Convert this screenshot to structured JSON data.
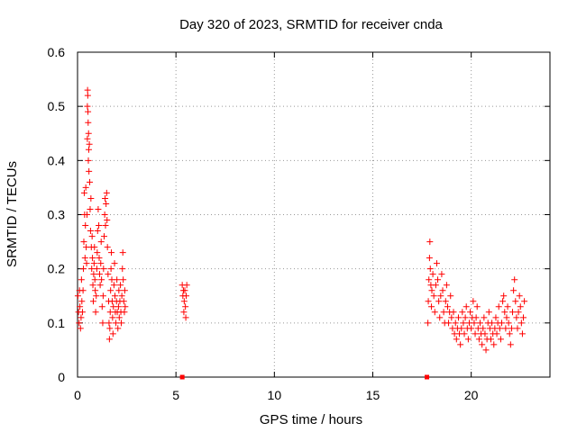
{
  "chart_data": {
    "type": "scatter",
    "title": "Day 320 of 2023, SRMTID for receiver cnda",
    "xlabel": "GPS time / hours",
    "ylabel": "SRMTID / TECUs",
    "xlim": [
      0,
      24
    ],
    "ylim": [
      0,
      0.6
    ],
    "xticks": [
      0,
      5,
      10,
      15,
      20
    ],
    "yticks": [
      0,
      0.1,
      0.2,
      0.3,
      0.4,
      0.5,
      0.6
    ],
    "grid": true,
    "marker": "+",
    "color": "#ff0000",
    "series": [
      {
        "name": "SRMTID",
        "points": [
          [
            0.02,
            0.15
          ],
          [
            0.05,
            0.12
          ],
          [
            0.08,
            0.1
          ],
          [
            0.1,
            0.16
          ],
          [
            0.12,
            0.13
          ],
          [
            0.15,
            0.09
          ],
          [
            0.18,
            0.11
          ],
          [
            0.2,
            0.18
          ],
          [
            0.22,
            0.14
          ],
          [
            0.25,
            0.12
          ],
          [
            0.28,
            0.16
          ],
          [
            0.3,
            0.2
          ],
          [
            0.32,
            0.25
          ],
          [
            0.34,
            0.34
          ],
          [
            0.36,
            0.3
          ],
          [
            0.38,
            0.22
          ],
          [
            0.4,
            0.28
          ],
          [
            0.42,
            0.35
          ],
          [
            0.44,
            0.24
          ],
          [
            0.46,
            0.21
          ],
          [
            0.48,
            0.3
          ],
          [
            0.5,
            0.44
          ],
          [
            0.5,
            0.5
          ],
          [
            0.51,
            0.53
          ],
          [
            0.52,
            0.52
          ],
          [
            0.53,
            0.49
          ],
          [
            0.54,
            0.47
          ],
          [
            0.55,
            0.4
          ],
          [
            0.56,
            0.45
          ],
          [
            0.57,
            0.42
          ],
          [
            0.58,
            0.38
          ],
          [
            0.6,
            0.43
          ],
          [
            0.62,
            0.36
          ],
          [
            0.64,
            0.31
          ],
          [
            0.66,
            0.27
          ],
          [
            0.68,
            0.33
          ],
          [
            0.7,
            0.24
          ],
          [
            0.72,
            0.2
          ],
          [
            0.74,
            0.26
          ],
          [
            0.76,
            0.22
          ],
          [
            0.78,
            0.17
          ],
          [
            0.8,
            0.14
          ],
          [
            0.82,
            0.19
          ],
          [
            0.84,
            0.21
          ],
          [
            0.86,
            0.24
          ],
          [
            0.88,
            0.18
          ],
          [
            0.9,
            0.16
          ],
          [
            0.92,
            0.12
          ],
          [
            0.95,
            0.15
          ],
          [
            0.98,
            0.2
          ],
          [
            1.0,
            0.23
          ],
          [
            1.02,
            0.27
          ],
          [
            1.05,
            0.31
          ],
          [
            1.08,
            0.28
          ],
          [
            1.1,
            0.22
          ],
          [
            1.12,
            0.19
          ],
          [
            1.15,
            0.17
          ],
          [
            1.18,
            0.21
          ],
          [
            1.2,
            0.25
          ],
          [
            1.22,
            0.18
          ],
          [
            1.25,
            0.13
          ],
          [
            1.28,
            0.1
          ],
          [
            1.3,
            0.15
          ],
          [
            1.32,
            0.2
          ],
          [
            1.35,
            0.26
          ],
          [
            1.38,
            0.3
          ],
          [
            1.4,
            0.33
          ],
          [
            1.42,
            0.28
          ],
          [
            1.45,
            0.32
          ],
          [
            1.48,
            0.34
          ],
          [
            1.5,
            0.29
          ],
          [
            1.52,
            0.24
          ],
          [
            1.55,
            0.19
          ],
          [
            1.58,
            0.14
          ],
          [
            1.6,
            0.1
          ],
          [
            1.62,
            0.07
          ],
          [
            1.64,
            0.09
          ],
          [
            1.66,
            0.12
          ],
          [
            1.68,
            0.16
          ],
          [
            1.7,
            0.2
          ],
          [
            1.72,
            0.23
          ],
          [
            1.74,
            0.18
          ],
          [
            1.76,
            0.14
          ],
          [
            1.78,
            0.11
          ],
          [
            1.8,
            0.08
          ],
          [
            1.82,
            0.13
          ],
          [
            1.85,
            0.17
          ],
          [
            1.88,
            0.21
          ],
          [
            1.9,
            0.15
          ],
          [
            1.92,
            0.12
          ],
          [
            1.95,
            0.1
          ],
          [
            1.98,
            0.14
          ],
          [
            2.0,
            0.18
          ],
          [
            2.02,
            0.12
          ],
          [
            2.05,
            0.09
          ],
          [
            2.08,
            0.13
          ],
          [
            2.1,
            0.16
          ],
          [
            2.12,
            0.11
          ],
          [
            2.15,
            0.14
          ],
          [
            2.18,
            0.17
          ],
          [
            2.2,
            0.12
          ],
          [
            2.22,
            0.1
          ],
          [
            2.25,
            0.15
          ],
          [
            2.28,
            0.2
          ],
          [
            2.3,
            0.23
          ],
          [
            2.32,
            0.18
          ],
          [
            2.35,
            0.14
          ],
          [
            2.38,
            0.12
          ],
          [
            2.4,
            0.16
          ],
          [
            2.42,
            0.13
          ],
          [
            5.32,
            0.17
          ],
          [
            5.35,
            0.15
          ],
          [
            5.38,
            0.16
          ],
          [
            5.4,
            0.12
          ],
          [
            5.42,
            0.14
          ],
          [
            5.45,
            0.16
          ],
          [
            5.48,
            0.13
          ],
          [
            5.5,
            0.11
          ],
          [
            5.52,
            0.15
          ],
          [
            5.55,
            0.17
          ],
          [
            17.8,
            0.1
          ],
          [
            17.82,
            0.14
          ],
          [
            17.85,
            0.18
          ],
          [
            17.88,
            0.22
          ],
          [
            17.9,
            0.25
          ],
          [
            17.92,
            0.2
          ],
          [
            17.95,
            0.17
          ],
          [
            17.98,
            0.13
          ],
          [
            18.0,
            0.16
          ],
          [
            18.05,
            0.19
          ],
          [
            18.1,
            0.15
          ],
          [
            18.15,
            0.12
          ],
          [
            18.2,
            0.17
          ],
          [
            18.25,
            0.21
          ],
          [
            18.3,
            0.18
          ],
          [
            18.35,
            0.14
          ],
          [
            18.4,
            0.11
          ],
          [
            18.45,
            0.15
          ],
          [
            18.5,
            0.19
          ],
          [
            18.55,
            0.16
          ],
          [
            18.6,
            0.12
          ],
          [
            18.65,
            0.1
          ],
          [
            18.7,
            0.14
          ],
          [
            18.75,
            0.17
          ],
          [
            18.8,
            0.13
          ],
          [
            18.85,
            0.1
          ],
          [
            18.9,
            0.12
          ],
          [
            18.95,
            0.15
          ],
          [
            19.0,
            0.11
          ],
          [
            19.05,
            0.09
          ],
          [
            19.1,
            0.12
          ],
          [
            19.15,
            0.08
          ],
          [
            19.2,
            0.1
          ],
          [
            19.25,
            0.07
          ],
          [
            19.3,
            0.09
          ],
          [
            19.35,
            0.11
          ],
          [
            19.4,
            0.08
          ],
          [
            19.45,
            0.06
          ],
          [
            19.5,
            0.09
          ],
          [
            19.55,
            0.12
          ],
          [
            19.6,
            0.1
          ],
          [
            19.65,
            0.08
          ],
          [
            19.7,
            0.11
          ],
          [
            19.75,
            0.13
          ],
          [
            19.8,
            0.09
          ],
          [
            19.85,
            0.07
          ],
          [
            19.9,
            0.1
          ],
          [
            19.95,
            0.12
          ],
          [
            20.0,
            0.09
          ],
          [
            20.05,
            0.11
          ],
          [
            20.1,
            0.14
          ],
          [
            20.15,
            0.1
          ],
          [
            20.2,
            0.08
          ],
          [
            20.25,
            0.11
          ],
          [
            20.3,
            0.13
          ],
          [
            20.35,
            0.09
          ],
          [
            20.4,
            0.07
          ],
          [
            20.45,
            0.1
          ],
          [
            20.5,
            0.08
          ],
          [
            20.55,
            0.06
          ],
          [
            20.6,
            0.09
          ],
          [
            20.65,
            0.11
          ],
          [
            20.7,
            0.08
          ],
          [
            20.75,
            0.05
          ],
          [
            20.8,
            0.07
          ],
          [
            20.85,
            0.1
          ],
          [
            20.9,
            0.12
          ],
          [
            20.95,
            0.09
          ],
          [
            21.0,
            0.07
          ],
          [
            21.05,
            0.1
          ],
          [
            21.1,
            0.08
          ],
          [
            21.15,
            0.06
          ],
          [
            21.2,
            0.09
          ],
          [
            21.25,
            0.11
          ],
          [
            21.3,
            0.08
          ],
          [
            21.35,
            0.1
          ],
          [
            21.4,
            0.13
          ],
          [
            21.45,
            0.09
          ],
          [
            21.5,
            0.07
          ],
          [
            21.55,
            0.1
          ],
          [
            21.6,
            0.14
          ],
          [
            21.65,
            0.15
          ],
          [
            21.7,
            0.12
          ],
          [
            21.75,
            0.09
          ],
          [
            21.8,
            0.11
          ],
          [
            21.85,
            0.13
          ],
          [
            21.9,
            0.1
          ],
          [
            21.95,
            0.08
          ],
          [
            22.0,
            0.06
          ],
          [
            22.05,
            0.09
          ],
          [
            22.1,
            0.12
          ],
          [
            22.15,
            0.16
          ],
          [
            22.2,
            0.18
          ],
          [
            22.25,
            0.14
          ],
          [
            22.3,
            0.11
          ],
          [
            22.35,
            0.09
          ],
          [
            22.4,
            0.12
          ],
          [
            22.45,
            0.15
          ],
          [
            22.5,
            0.13
          ],
          [
            22.55,
            0.1
          ],
          [
            22.6,
            0.08
          ],
          [
            22.65,
            0.11
          ],
          [
            22.7,
            0.14
          ]
        ]
      }
    ],
    "zero_markers": [
      [
        5.32,
        0.0
      ],
      [
        17.75,
        0.0
      ]
    ]
  }
}
